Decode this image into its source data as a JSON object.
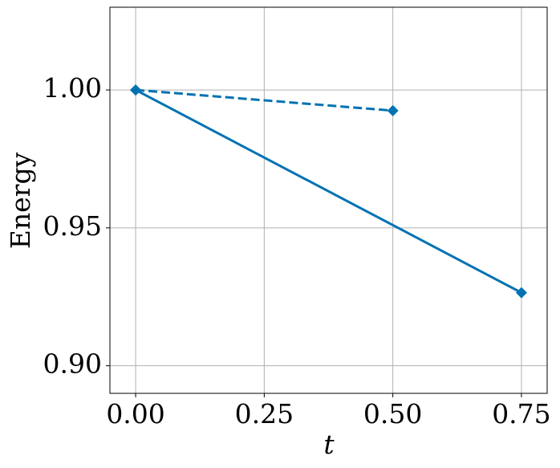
{
  "chart_data": {
    "type": "line",
    "xlabel": "t",
    "ylabel": "Energy",
    "series": [
      {
        "color": "#0072b2",
        "linestyle": "solid",
        "marker": "diamond",
        "x": [
          0,
          0.75
        ],
        "values": [
          1.0,
          0.9265
        ]
      },
      {
        "color": "#0072b2",
        "linestyle": "dashed",
        "marker": "diamond",
        "x": [
          0,
          0.5
        ],
        "values": [
          1.0,
          0.9925
        ]
      }
    ],
    "xlim": [
      -0.05,
      0.8
    ],
    "ylim": [
      0.89,
      1.03
    ],
    "xticks": [
      {
        "value": 0,
        "label": "0.00"
      },
      {
        "value": 0.25,
        "label": "0.25"
      },
      {
        "value": 0.5,
        "label": "0.50"
      },
      {
        "value": 0.75,
        "label": "0.75"
      }
    ],
    "yticks": [
      {
        "value": 0.9,
        "label": "0.90"
      },
      {
        "value": 0.95,
        "label": "0.95"
      },
      {
        "value": 1.0,
        "label": "1.00"
      }
    ],
    "grid": true
  }
}
